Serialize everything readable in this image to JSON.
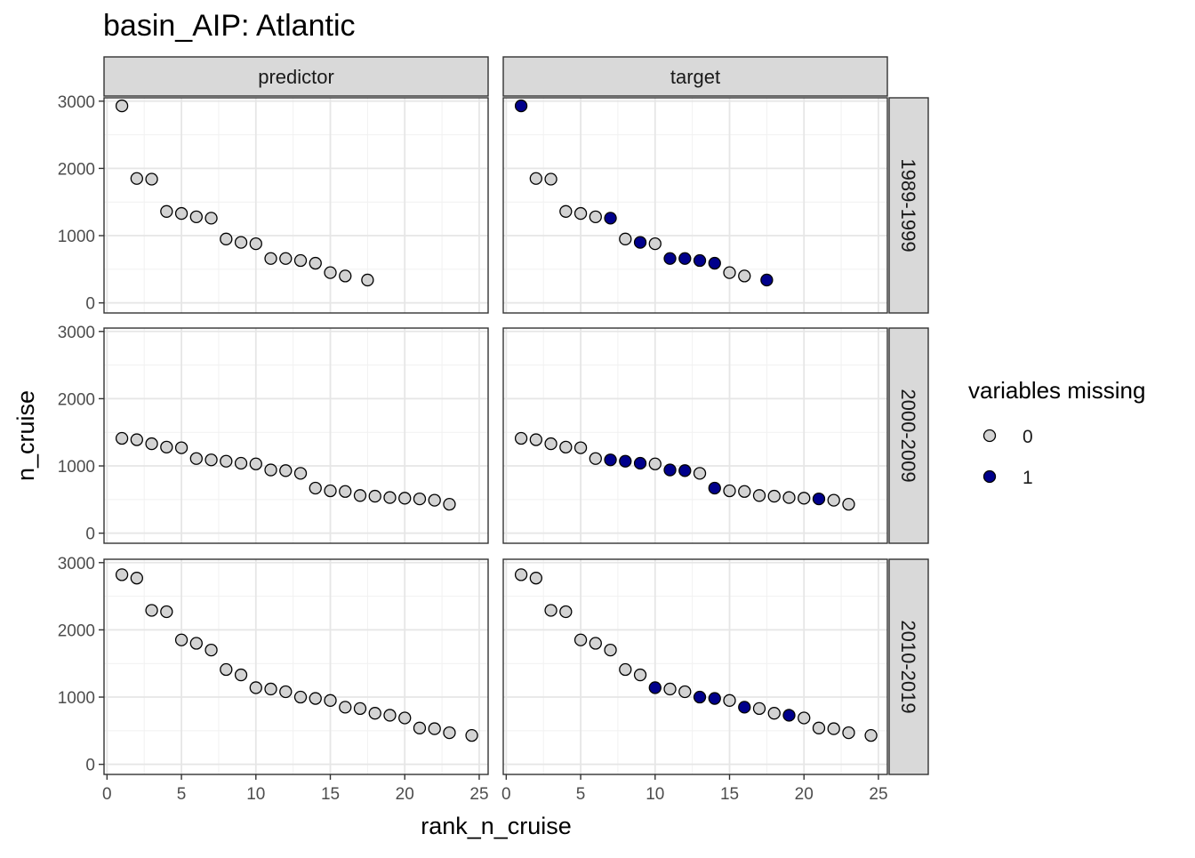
{
  "chart_data": {
    "type": "scatter",
    "title": "basin_AIP: Atlantic",
    "xlabel": "rank_n_cruise",
    "ylabel": "n_cruise",
    "xlim": [
      -0.2,
      25.6
    ],
    "ylim": [
      -150,
      3050
    ],
    "x_ticks": [
      0,
      5,
      10,
      15,
      20,
      25
    ],
    "y_ticks": [
      0,
      1000,
      2000,
      3000
    ],
    "grid": true,
    "facet_cols": [
      "predictor",
      "target"
    ],
    "facet_rows": [
      "1989-1999",
      "2000-2009",
      "2010-2019"
    ],
    "legend": {
      "title": "variables missing",
      "placement": "right",
      "entries": [
        {
          "label": "0",
          "color": "#d3d3d3"
        },
        {
          "label": "1",
          "color": "#00008b"
        }
      ]
    },
    "panels": [
      {
        "col": "predictor",
        "row": "1989-1999",
        "points": [
          {
            "x": 1,
            "y": 2930,
            "missing": 0
          },
          {
            "x": 2,
            "y": 1850,
            "missing": 0
          },
          {
            "x": 3,
            "y": 1840,
            "missing": 0
          },
          {
            "x": 4,
            "y": 1360,
            "missing": 0
          },
          {
            "x": 5,
            "y": 1330,
            "missing": 0
          },
          {
            "x": 6,
            "y": 1280,
            "missing": 0
          },
          {
            "x": 7,
            "y": 1260,
            "missing": 0
          },
          {
            "x": 8,
            "y": 950,
            "missing": 0
          },
          {
            "x": 9,
            "y": 900,
            "missing": 0
          },
          {
            "x": 10,
            "y": 880,
            "missing": 0
          },
          {
            "x": 11,
            "y": 660,
            "missing": 0
          },
          {
            "x": 12,
            "y": 660,
            "missing": 0
          },
          {
            "x": 13,
            "y": 630,
            "missing": 0
          },
          {
            "x": 14,
            "y": 590,
            "missing": 0
          },
          {
            "x": 15,
            "y": 450,
            "missing": 0
          },
          {
            "x": 16,
            "y": 400,
            "missing": 0
          },
          {
            "x": 17.5,
            "y": 340,
            "missing": 0
          }
        ]
      },
      {
        "col": "target",
        "row": "1989-1999",
        "points": [
          {
            "x": 1,
            "y": 2930,
            "missing": 1
          },
          {
            "x": 2,
            "y": 1850,
            "missing": 0
          },
          {
            "x": 3,
            "y": 1840,
            "missing": 0
          },
          {
            "x": 4,
            "y": 1360,
            "missing": 0
          },
          {
            "x": 5,
            "y": 1330,
            "missing": 0
          },
          {
            "x": 6,
            "y": 1280,
            "missing": 0
          },
          {
            "x": 7,
            "y": 1260,
            "missing": 1
          },
          {
            "x": 8,
            "y": 950,
            "missing": 0
          },
          {
            "x": 9,
            "y": 900,
            "missing": 1
          },
          {
            "x": 10,
            "y": 880,
            "missing": 0
          },
          {
            "x": 11,
            "y": 660,
            "missing": 1
          },
          {
            "x": 12,
            "y": 660,
            "missing": 1
          },
          {
            "x": 13,
            "y": 630,
            "missing": 1
          },
          {
            "x": 14,
            "y": 590,
            "missing": 1
          },
          {
            "x": 15,
            "y": 450,
            "missing": 0
          },
          {
            "x": 16,
            "y": 400,
            "missing": 0
          },
          {
            "x": 17.5,
            "y": 340,
            "missing": 1
          }
        ]
      },
      {
        "col": "predictor",
        "row": "2000-2009",
        "points": [
          {
            "x": 1,
            "y": 1410,
            "missing": 0
          },
          {
            "x": 2,
            "y": 1390,
            "missing": 0
          },
          {
            "x": 3,
            "y": 1330,
            "missing": 0
          },
          {
            "x": 4,
            "y": 1280,
            "missing": 0
          },
          {
            "x": 5,
            "y": 1270,
            "missing": 0
          },
          {
            "x": 6,
            "y": 1110,
            "missing": 0
          },
          {
            "x": 7,
            "y": 1090,
            "missing": 0
          },
          {
            "x": 8,
            "y": 1070,
            "missing": 0
          },
          {
            "x": 9,
            "y": 1040,
            "missing": 0
          },
          {
            "x": 10,
            "y": 1030,
            "missing": 0
          },
          {
            "x": 11,
            "y": 940,
            "missing": 0
          },
          {
            "x": 12,
            "y": 930,
            "missing": 0
          },
          {
            "x": 13,
            "y": 890,
            "missing": 0
          },
          {
            "x": 14,
            "y": 670,
            "missing": 0
          },
          {
            "x": 15,
            "y": 630,
            "missing": 0
          },
          {
            "x": 16,
            "y": 620,
            "missing": 0
          },
          {
            "x": 17,
            "y": 560,
            "missing": 0
          },
          {
            "x": 18,
            "y": 550,
            "missing": 0
          },
          {
            "x": 19,
            "y": 530,
            "missing": 0
          },
          {
            "x": 20,
            "y": 520,
            "missing": 0
          },
          {
            "x": 21,
            "y": 510,
            "missing": 0
          },
          {
            "x": 22,
            "y": 490,
            "missing": 0
          },
          {
            "x": 23,
            "y": 430,
            "missing": 0
          }
        ]
      },
      {
        "col": "target",
        "row": "2000-2009",
        "points": [
          {
            "x": 1,
            "y": 1410,
            "missing": 0
          },
          {
            "x": 2,
            "y": 1390,
            "missing": 0
          },
          {
            "x": 3,
            "y": 1330,
            "missing": 0
          },
          {
            "x": 4,
            "y": 1280,
            "missing": 0
          },
          {
            "x": 5,
            "y": 1270,
            "missing": 0
          },
          {
            "x": 6,
            "y": 1110,
            "missing": 0
          },
          {
            "x": 7,
            "y": 1090,
            "missing": 1
          },
          {
            "x": 8,
            "y": 1070,
            "missing": 1
          },
          {
            "x": 9,
            "y": 1040,
            "missing": 1
          },
          {
            "x": 10,
            "y": 1030,
            "missing": 0
          },
          {
            "x": 11,
            "y": 940,
            "missing": 1
          },
          {
            "x": 12,
            "y": 930,
            "missing": 1
          },
          {
            "x": 13,
            "y": 890,
            "missing": 0
          },
          {
            "x": 14,
            "y": 670,
            "missing": 1
          },
          {
            "x": 15,
            "y": 630,
            "missing": 0
          },
          {
            "x": 16,
            "y": 620,
            "missing": 0
          },
          {
            "x": 17,
            "y": 560,
            "missing": 0
          },
          {
            "x": 18,
            "y": 550,
            "missing": 0
          },
          {
            "x": 19,
            "y": 530,
            "missing": 0
          },
          {
            "x": 20,
            "y": 520,
            "missing": 0
          },
          {
            "x": 21,
            "y": 510,
            "missing": 1
          },
          {
            "x": 22,
            "y": 490,
            "missing": 0
          },
          {
            "x": 23,
            "y": 430,
            "missing": 0
          }
        ]
      },
      {
        "col": "predictor",
        "row": "2010-2019",
        "points": [
          {
            "x": 1,
            "y": 2820,
            "missing": 0
          },
          {
            "x": 2,
            "y": 2770,
            "missing": 0
          },
          {
            "x": 3,
            "y": 2290,
            "missing": 0
          },
          {
            "x": 4,
            "y": 2270,
            "missing": 0
          },
          {
            "x": 5,
            "y": 1850,
            "missing": 0
          },
          {
            "x": 6,
            "y": 1800,
            "missing": 0
          },
          {
            "x": 7,
            "y": 1700,
            "missing": 0
          },
          {
            "x": 8,
            "y": 1410,
            "missing": 0
          },
          {
            "x": 9,
            "y": 1330,
            "missing": 0
          },
          {
            "x": 10,
            "y": 1140,
            "missing": 0
          },
          {
            "x": 11,
            "y": 1120,
            "missing": 0
          },
          {
            "x": 12,
            "y": 1080,
            "missing": 0
          },
          {
            "x": 13,
            "y": 1000,
            "missing": 0
          },
          {
            "x": 14,
            "y": 980,
            "missing": 0
          },
          {
            "x": 15,
            "y": 950,
            "missing": 0
          },
          {
            "x": 16,
            "y": 850,
            "missing": 0
          },
          {
            "x": 17,
            "y": 830,
            "missing": 0
          },
          {
            "x": 18,
            "y": 760,
            "missing": 0
          },
          {
            "x": 19,
            "y": 730,
            "missing": 0
          },
          {
            "x": 20,
            "y": 690,
            "missing": 0
          },
          {
            "x": 21,
            "y": 540,
            "missing": 0
          },
          {
            "x": 22,
            "y": 530,
            "missing": 0
          },
          {
            "x": 23,
            "y": 470,
            "missing": 0
          },
          {
            "x": 24.5,
            "y": 430,
            "missing": 0
          }
        ]
      },
      {
        "col": "target",
        "row": "2010-2019",
        "points": [
          {
            "x": 1,
            "y": 2820,
            "missing": 0
          },
          {
            "x": 2,
            "y": 2770,
            "missing": 0
          },
          {
            "x": 3,
            "y": 2290,
            "missing": 0
          },
          {
            "x": 4,
            "y": 2270,
            "missing": 0
          },
          {
            "x": 5,
            "y": 1850,
            "missing": 0
          },
          {
            "x": 6,
            "y": 1800,
            "missing": 0
          },
          {
            "x": 7,
            "y": 1700,
            "missing": 0
          },
          {
            "x": 8,
            "y": 1410,
            "missing": 0
          },
          {
            "x": 9,
            "y": 1330,
            "missing": 0
          },
          {
            "x": 10,
            "y": 1140,
            "missing": 1
          },
          {
            "x": 11,
            "y": 1120,
            "missing": 0
          },
          {
            "x": 12,
            "y": 1080,
            "missing": 0
          },
          {
            "x": 13,
            "y": 1000,
            "missing": 1
          },
          {
            "x": 14,
            "y": 980,
            "missing": 1
          },
          {
            "x": 15,
            "y": 950,
            "missing": 0
          },
          {
            "x": 16,
            "y": 850,
            "missing": 1
          },
          {
            "x": 17,
            "y": 830,
            "missing": 0
          },
          {
            "x": 18,
            "y": 760,
            "missing": 0
          },
          {
            "x": 19,
            "y": 730,
            "missing": 1
          },
          {
            "x": 20,
            "y": 690,
            "missing": 0
          },
          {
            "x": 21,
            "y": 540,
            "missing": 0
          },
          {
            "x": 22,
            "y": 530,
            "missing": 0
          },
          {
            "x": 23,
            "y": 470,
            "missing": 0
          },
          {
            "x": 24.5,
            "y": 430,
            "missing": 0
          }
        ]
      }
    ]
  }
}
